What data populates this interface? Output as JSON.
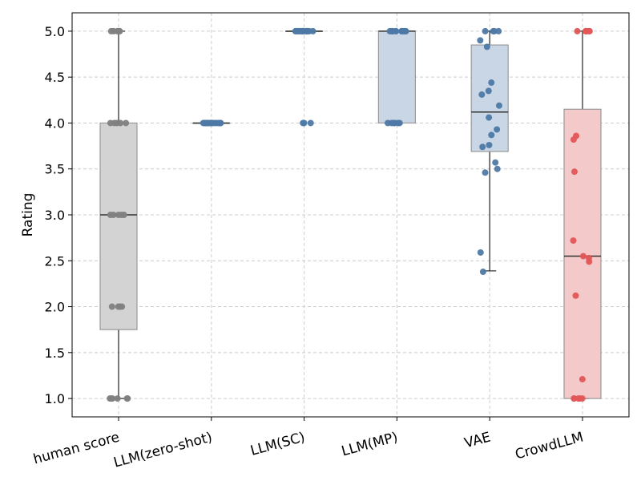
{
  "chart_data": {
    "type": "box",
    "title": "",
    "xlabel": "",
    "ylabel": "Rating",
    "ylim": [
      0.8,
      5.2
    ],
    "yticks": [
      "1.0",
      "1.5",
      "2.0",
      "2.5",
      "3.0",
      "3.5",
      "4.0",
      "4.5",
      "5.0"
    ],
    "grid": true,
    "categories": [
      "human score",
      "LLM(zero-shot)",
      "LLM(SC)",
      "LLM(MP)",
      "VAE",
      "CrowdLLM"
    ],
    "colors": {
      "human score": "#808080",
      "LLM(zero-shot)": "#4e79a7",
      "LLM(SC)": "#4e79a7",
      "LLM(MP)": "#4e79a7",
      "VAE": "#4e79a7",
      "CrowdLLM": "#e15759",
      "box_fill_gray": "#d3d3d3",
      "box_fill_blue": "#c8d6e5",
      "box_fill_red": "#f4c9c9",
      "line": "#333333"
    },
    "series": [
      {
        "category": "human score",
        "box": {
          "q1": 1.75,
          "median": 3.0,
          "q3": 4.0,
          "whisker_low": 1.0,
          "whisker_high": 5.0
        },
        "points": [
          5.0,
          5.0,
          5.0,
          5.0,
          5.0,
          5.0,
          4.0,
          4.0,
          4.0,
          4.0,
          4.0,
          3.0,
          3.0,
          3.0,
          3.0,
          3.0,
          2.0,
          2.0,
          2.0,
          2.0,
          1.0,
          1.0,
          1.0,
          1.0,
          1.0,
          1.0
        ]
      },
      {
        "category": "LLM(zero-shot)",
        "box": {
          "q1": 4.0,
          "median": 4.0,
          "q3": 4.0,
          "whisker_low": 4.0,
          "whisker_high": 4.0
        },
        "points": [
          4.0,
          4.0,
          4.0,
          4.0,
          4.0,
          4.0,
          4.0,
          4.0,
          4.0,
          4.0,
          4.0,
          4.0,
          4.0,
          4.0,
          4.0,
          4.0,
          4.0,
          4.0,
          4.0,
          4.0
        ]
      },
      {
        "category": "LLM(SC)",
        "box": {
          "q1": 5.0,
          "median": 5.0,
          "q3": 5.0,
          "whisker_low": 5.0,
          "whisker_high": 5.0
        },
        "points": [
          5.0,
          5.0,
          5.0,
          5.0,
          5.0,
          5.0,
          5.0,
          5.0,
          5.0,
          5.0,
          5.0,
          5.0,
          5.0,
          5.0,
          5.0,
          5.0,
          5.0,
          4.0,
          4.0,
          4.0
        ]
      },
      {
        "category": "LLM(MP)",
        "box": {
          "q1": 4.0,
          "median": 5.0,
          "q3": 5.0,
          "whisker_low": 4.0,
          "whisker_high": 5.0
        },
        "points": [
          5.0,
          5.0,
          5.0,
          5.0,
          5.0,
          5.0,
          5.0,
          5.0,
          5.0,
          5.0,
          5.0,
          5.0,
          5.0,
          4.0,
          4.0,
          4.0,
          4.0,
          4.0,
          4.0,
          4.0
        ]
      },
      {
        "category": "VAE",
        "box": {
          "q1": 3.69,
          "median": 4.12,
          "q3": 4.85,
          "whisker_low": 2.39,
          "whisker_high": 5.0
        },
        "points": [
          5.0,
          5.0,
          5.0,
          5.0,
          4.9,
          4.83,
          4.44,
          4.35,
          4.31,
          4.19,
          4.06,
          3.93,
          3.87,
          3.76,
          3.74,
          3.57,
          3.5,
          3.46,
          2.59,
          2.38
        ]
      },
      {
        "category": "CrowdLLM",
        "box": {
          "q1": 1.0,
          "median": 2.55,
          "q3": 4.15,
          "whisker_low": 1.0,
          "whisker_high": 5.0
        },
        "points": [
          5.0,
          5.0,
          5.0,
          5.0,
          5.0,
          5.0,
          3.86,
          3.82,
          3.47,
          2.72,
          2.55,
          2.53,
          2.49,
          2.12,
          1.21,
          1.0,
          1.0,
          1.0,
          1.0,
          1.0
        ]
      }
    ]
  }
}
